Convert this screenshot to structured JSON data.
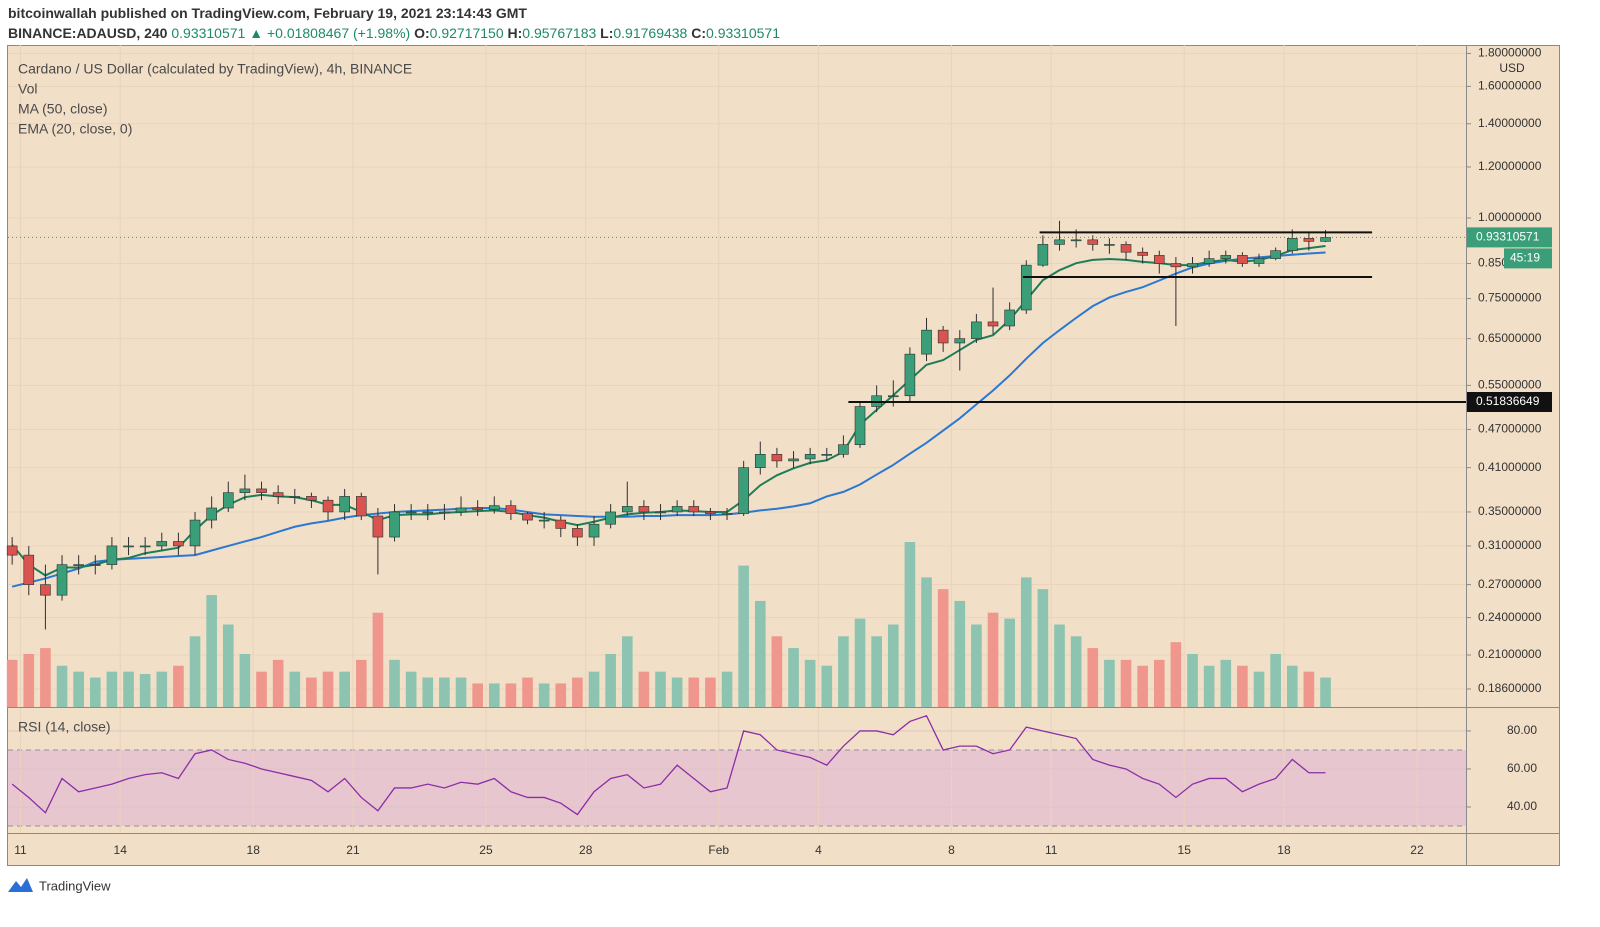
{
  "header": {
    "publisher": "bitcoinwallah published on TradingView.com, February 19, 2021 23:14:43 GMT",
    "symbol": "BINANCE:ADAUSD, 240",
    "price": "0.93310571",
    "change": "▲ +0.01808467 (+1.98%)",
    "ohlc": [
      {
        "key": "O:",
        "value": "0.92717150"
      },
      {
        "key": "H:",
        "value": "0.95767183"
      },
      {
        "key": "L:",
        "value": "0.91769438"
      },
      {
        "key": "C:",
        "value": "0.93310571"
      }
    ]
  },
  "footer": {
    "brand": "TradingView"
  },
  "chart_data": [
    {
      "type": "candlestick",
      "title": "Cardano / US Dollar (calculated by TradingView), 4h, BINANCE",
      "axis_unit": "USD",
      "log_scale": true,
      "grid": true,
      "up_color": "#3a9e78",
      "down_color": "#d9534f",
      "up_volume_color": "#8cc4b1",
      "down_volume_color": "#ef978c",
      "open": [
        0.31,
        0.3,
        0.27,
        0.26,
        0.29,
        0.29,
        0.29,
        0.31,
        0.31,
        0.31,
        0.315,
        0.31,
        0.34,
        0.355,
        0.375,
        0.38,
        0.375,
        0.37,
        0.37,
        0.365,
        0.35,
        0.37,
        0.345,
        0.32,
        0.35,
        0.35,
        0.35,
        0.35,
        0.355,
        0.353,
        0.358,
        0.348,
        0.34,
        0.34,
        0.33,
        0.32,
        0.335,
        0.35,
        0.357,
        0.35,
        0.35,
        0.357,
        0.35,
        0.348,
        0.348,
        0.41,
        0.43,
        0.42,
        0.423,
        0.43,
        0.43,
        0.445,
        0.51,
        0.53,
        0.53,
        0.615,
        0.67,
        0.64,
        0.65,
        0.69,
        0.68,
        0.72,
        0.845,
        0.91,
        0.925,
        0.925,
        0.91,
        0.91,
        0.885,
        0.875,
        0.85,
        0.84,
        0.85,
        0.865,
        0.875,
        0.85,
        0.865,
        0.89,
        0.93,
        0.92
      ],
      "high": [
        0.32,
        0.31,
        0.29,
        0.3,
        0.3,
        0.3,
        0.32,
        0.32,
        0.32,
        0.325,
        0.325,
        0.35,
        0.37,
        0.39,
        0.4,
        0.39,
        0.385,
        0.38,
        0.375,
        0.37,
        0.38,
        0.375,
        0.355,
        0.36,
        0.36,
        0.36,
        0.36,
        0.37,
        0.365,
        0.37,
        0.365,
        0.35,
        0.35,
        0.345,
        0.335,
        0.345,
        0.36,
        0.39,
        0.365,
        0.36,
        0.365,
        0.365,
        0.355,
        0.355,
        0.42,
        0.45,
        0.44,
        0.435,
        0.44,
        0.44,
        0.46,
        0.52,
        0.55,
        0.56,
        0.63,
        0.7,
        0.68,
        0.67,
        0.71,
        0.78,
        0.74,
        0.86,
        0.94,
        0.99,
        0.96,
        0.94,
        0.93,
        0.92,
        0.9,
        0.89,
        0.87,
        0.87,
        0.89,
        0.89,
        0.885,
        0.88,
        0.9,
        0.96,
        0.95,
        0.9577
      ],
      "low": [
        0.29,
        0.26,
        0.23,
        0.255,
        0.28,
        0.28,
        0.285,
        0.3,
        0.3,
        0.305,
        0.3,
        0.3,
        0.33,
        0.35,
        0.365,
        0.365,
        0.36,
        0.36,
        0.355,
        0.34,
        0.34,
        0.34,
        0.28,
        0.315,
        0.34,
        0.34,
        0.34,
        0.345,
        0.345,
        0.348,
        0.34,
        0.335,
        0.33,
        0.32,
        0.31,
        0.31,
        0.33,
        0.345,
        0.34,
        0.34,
        0.345,
        0.345,
        0.34,
        0.34,
        0.345,
        0.4,
        0.41,
        0.41,
        0.415,
        0.42,
        0.425,
        0.44,
        0.5,
        0.51,
        0.52,
        0.6,
        0.62,
        0.58,
        0.64,
        0.66,
        0.67,
        0.71,
        0.84,
        0.89,
        0.9,
        0.89,
        0.88,
        0.86,
        0.85,
        0.82,
        0.68,
        0.82,
        0.84,
        0.85,
        0.84,
        0.84,
        0.86,
        0.88,
        0.89,
        0.9177
      ],
      "close": [
        0.3,
        0.27,
        0.26,
        0.29,
        0.29,
        0.29,
        0.31,
        0.31,
        0.31,
        0.315,
        0.31,
        0.34,
        0.355,
        0.375,
        0.38,
        0.375,
        0.37,
        0.37,
        0.365,
        0.35,
        0.37,
        0.345,
        0.32,
        0.35,
        0.35,
        0.35,
        0.35,
        0.355,
        0.353,
        0.358,
        0.348,
        0.34,
        0.34,
        0.33,
        0.32,
        0.335,
        0.35,
        0.357,
        0.35,
        0.35,
        0.357,
        0.35,
        0.348,
        0.348,
        0.41,
        0.43,
        0.42,
        0.423,
        0.43,
        0.43,
        0.445,
        0.51,
        0.53,
        0.53,
        0.615,
        0.67,
        0.64,
        0.65,
        0.69,
        0.68,
        0.72,
        0.845,
        0.91,
        0.925,
        0.925,
        0.91,
        0.91,
        0.885,
        0.875,
        0.85,
        0.84,
        0.85,
        0.865,
        0.875,
        0.85,
        0.865,
        0.89,
        0.93,
        0.92,
        0.9331
      ],
      "volume_name": "Vol",
      "volume": [
        40,
        45,
        50,
        35,
        30,
        25,
        30,
        30,
        28,
        30,
        35,
        60,
        95,
        70,
        45,
        30,
        40,
        30,
        25,
        30,
        30,
        40,
        80,
        40,
        30,
        25,
        25,
        25,
        20,
        20,
        20,
        25,
        20,
        20,
        25,
        30,
        45,
        60,
        30,
        30,
        25,
        25,
        25,
        30,
        120,
        90,
        60,
        50,
        40,
        35,
        60,
        75,
        60,
        70,
        140,
        110,
        100,
        90,
        70,
        80,
        75,
        110,
        100,
        70,
        60,
        50,
        40,
        40,
        35,
        40,
        55,
        45,
        35,
        40,
        35,
        30,
        45,
        35,
        30,
        25
      ],
      "series": [
        {
          "name": "MA (50, close)",
          "color": "#2a78d2",
          "values": [
            0.268,
            0.272,
            0.276,
            0.281,
            0.286,
            0.293,
            0.295,
            0.296,
            0.297,
            0.298,
            0.299,
            0.3,
            0.305,
            0.31,
            0.315,
            0.32,
            0.326,
            0.332,
            0.336,
            0.339,
            0.343,
            0.346,
            0.348,
            0.35,
            0.351,
            0.352,
            0.353,
            0.354,
            0.355,
            0.355,
            0.353,
            0.35,
            0.347,
            0.346,
            0.345,
            0.344,
            0.344,
            0.344,
            0.345,
            0.345,
            0.346,
            0.346,
            0.346,
            0.347,
            0.349,
            0.352,
            0.354,
            0.357,
            0.361,
            0.37,
            0.376,
            0.386,
            0.4,
            0.414,
            0.431,
            0.448,
            0.468,
            0.489,
            0.514,
            0.54,
            0.57,
            0.605,
            0.64,
            0.67,
            0.7,
            0.73,
            0.753,
            0.768,
            0.781,
            0.8,
            0.82,
            0.838,
            0.85,
            0.858,
            0.865,
            0.869,
            0.873,
            0.877,
            0.881,
            0.884
          ]
        },
        {
          "name": "EMA (20, close, 0)",
          "color": "#1d7d58",
          "values": [
            0.311,
            0.29,
            0.279,
            0.287,
            0.287,
            0.29,
            0.295,
            0.297,
            0.302,
            0.305,
            0.308,
            0.328,
            0.346,
            0.359,
            0.369,
            0.372,
            0.37,
            0.369,
            0.365,
            0.359,
            0.359,
            0.35,
            0.34,
            0.346,
            0.347,
            0.347,
            0.349,
            0.35,
            0.351,
            0.352,
            0.35,
            0.346,
            0.343,
            0.338,
            0.334,
            0.338,
            0.343,
            0.347,
            0.349,
            0.35,
            0.352,
            0.351,
            0.35,
            0.35,
            0.365,
            0.385,
            0.399,
            0.409,
            0.417,
            0.421,
            0.434,
            0.478,
            0.504,
            0.531,
            0.561,
            0.592,
            0.602,
            0.624,
            0.647,
            0.658,
            0.695,
            0.746,
            0.801,
            0.83,
            0.851,
            0.861,
            0.864,
            0.861,
            0.855,
            0.851,
            0.845,
            0.845,
            0.855,
            0.861,
            0.855,
            0.861,
            0.873,
            0.892,
            0.898,
            0.905
          ]
        }
      ],
      "hlines": [
        {
          "value": 0.95,
          "x": [
            61.8,
            81.8
          ]
        },
        {
          "value": 0.81,
          "x": [
            60.8,
            81.8
          ]
        },
        {
          "value": 0.51836649,
          "x": [
            50.3,
            87.45
          ]
        }
      ],
      "last_price": 0.93310571,
      "countdown": "45:19",
      "xlim": [
        -0.25,
        87.45
      ],
      "xticks": [
        {
          "value": 0.5,
          "label": "11"
        },
        {
          "value": 6.5,
          "label": "14"
        },
        {
          "value": 14.5,
          "label": "18"
        },
        {
          "value": 20.5,
          "label": "21"
        },
        {
          "value": 28.5,
          "label": "25"
        },
        {
          "value": 34.5,
          "label": "28"
        },
        {
          "value": 42.5,
          "label": "Feb"
        },
        {
          "value": 48.5,
          "label": "4"
        },
        {
          "value": 56.5,
          "label": "8"
        },
        {
          "value": 62.5,
          "label": "11"
        },
        {
          "value": 70.5,
          "label": "15"
        },
        {
          "value": 76.5,
          "label": "18"
        },
        {
          "value": 84.5,
          "label": "22"
        }
      ],
      "ylim": [
        0.1744,
        1.855
      ],
      "yticks": [
        {
          "value": 1.8,
          "label": "1.80000000"
        },
        {
          "value": 1.6,
          "label": "1.60000000"
        },
        {
          "value": 1.4,
          "label": "1.40000000"
        },
        {
          "value": 1.2,
          "label": "1.20000000"
        },
        {
          "value": 1,
          "label": "1.00000000"
        },
        {
          "value": 0.85,
          "label": "0.85000000"
        },
        {
          "value": 0.75,
          "label": "0.75000000"
        },
        {
          "value": 0.65,
          "label": "0.65000000"
        },
        {
          "value": 0.55,
          "label": "0.55000000"
        },
        {
          "value": 0.47,
          "label": "0.47000000"
        },
        {
          "value": 0.41,
          "label": "0.41000000"
        },
        {
          "value": 0.35,
          "label": "0.35000000"
        },
        {
          "value": 0.31,
          "label": "0.31000000"
        },
        {
          "value": 0.27,
          "label": "0.27000000"
        },
        {
          "value": 0.24,
          "label": "0.24000000"
        },
        {
          "value": 0.21,
          "label": "0.21000000"
        },
        {
          "value": 0.186,
          "label": "0.18600000"
        }
      ]
    },
    {
      "type": "line",
      "band": [
        30,
        70
      ],
      "band_color": "#e8c6d0",
      "grid": true,
      "series": [
        {
          "name": "RSI (14, close)",
          "color": "#8a2ea6",
          "values": [
            52,
            45,
            37,
            55,
            48,
            50,
            52,
            55,
            57,
            58,
            55,
            68,
            70,
            65,
            63,
            60,
            58,
            56,
            54,
            48,
            55,
            45,
            38,
            50,
            50,
            52,
            50,
            53,
            52,
            55,
            48,
            45,
            45,
            42,
            36,
            48,
            55,
            57,
            50,
            52,
            62,
            55,
            48,
            50,
            80,
            78,
            70,
            68,
            66,
            62,
            72,
            80,
            80,
            78,
            85,
            88,
            70,
            72,
            72,
            68,
            70,
            82,
            80,
            78,
            76,
            65,
            62,
            60,
            55,
            52,
            45,
            52,
            55,
            55,
            48,
            52,
            55,
            65,
            58,
            58
          ]
        }
      ],
      "ylim": [
        26.3,
        92.6
      ],
      "yticks": [
        {
          "value": 80,
          "label": "80.00"
        },
        {
          "value": 60,
          "label": "60.00"
        },
        {
          "value": 40,
          "label": "40.00"
        }
      ]
    }
  ]
}
